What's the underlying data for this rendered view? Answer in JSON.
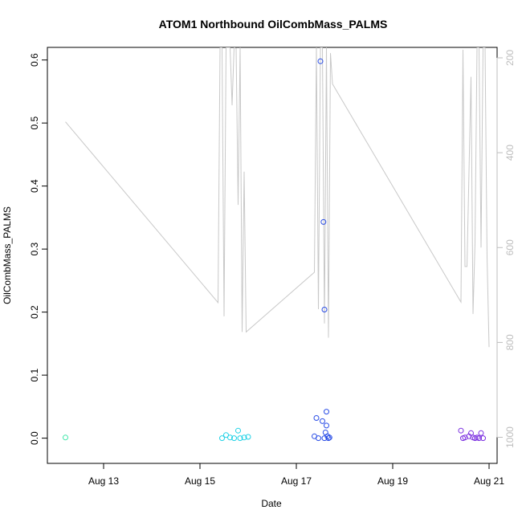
{
  "chart_data": {
    "type": "scatter",
    "title": "ATOM1 Northbound OilCombMass_PALMS",
    "xlabel": "Date",
    "ylabel": "OilCombMass_PALMS",
    "x_ticks": [
      "Aug 13",
      "Aug 15",
      "Aug 17",
      "Aug 19",
      "Aug 21"
    ],
    "y_ticks": [
      "0.0",
      "0.1",
      "0.2",
      "0.3",
      "0.4",
      "0.5",
      "0.6"
    ],
    "y_right_ticks": [
      "200",
      "400",
      "600",
      "800",
      "1000"
    ],
    "xlim": [
      "Aug 11 20:00",
      "Aug 21 04:00"
    ],
    "ylim": [
      -0.04,
      0.62
    ],
    "y_right_lim": [
      1055,
      178
    ],
    "y_right_inverted": true,
    "grid": false,
    "colors": {
      "line": "#c8c8c8",
      "right_axis": "#bdbdbd",
      "frame": "#000000"
    },
    "series": [
      {
        "color": "#3ee6a8",
        "points": [
          {
            "x": "Aug 12 05:00",
            "y": 0.001
          }
        ]
      },
      {
        "color": "#22d2e6",
        "points": [
          {
            "x": "Aug 15 11:00",
            "y": 0.0
          },
          {
            "x": "Aug 15 13:00",
            "y": 0.005
          },
          {
            "x": "Aug 15 15:00",
            "y": 0.001
          },
          {
            "x": "Aug 15 17:00",
            "y": 0.0
          },
          {
            "x": "Aug 15 19:00",
            "y": 0.012
          },
          {
            "x": "Aug 15 20:00",
            "y": 0.0
          },
          {
            "x": "Aug 15 22:00",
            "y": 0.001
          },
          {
            "x": "Aug 16 00:00",
            "y": 0.002
          }
        ]
      },
      {
        "color": "#2a4de6",
        "points": [
          {
            "x": "Aug 17 09:00",
            "y": 0.003
          },
          {
            "x": "Aug 17 10:00",
            "y": 0.032
          },
          {
            "x": "Aug 17 11:00",
            "y": 0.0
          },
          {
            "x": "Aug 17 12:00",
            "y": 0.598
          },
          {
            "x": "Aug 17 13:00",
            "y": 0.027
          },
          {
            "x": "Aug 17 13:30",
            "y": 0.343
          },
          {
            "x": "Aug 17 14:00",
            "y": 0.204
          },
          {
            "x": "Aug 17 14:00",
            "y": 0.0
          },
          {
            "x": "Aug 17 14:30",
            "y": 0.009
          },
          {
            "x": "Aug 17 15:00",
            "y": 0.042
          },
          {
            "x": "Aug 17 15:00",
            "y": 0.02
          },
          {
            "x": "Aug 17 15:30",
            "y": 0.003
          },
          {
            "x": "Aug 17 16:00",
            "y": 0.0
          },
          {
            "x": "Aug 17 16:30",
            "y": 0.001
          }
        ]
      },
      {
        "color": "#7a2ee0",
        "points": [
          {
            "x": "Aug 20 10:00",
            "y": 0.012
          },
          {
            "x": "Aug 20 11:00",
            "y": 0.0
          },
          {
            "x": "Aug 20 12:00",
            "y": 0.001
          },
          {
            "x": "Aug 20 14:00",
            "y": 0.003
          },
          {
            "x": "Aug 20 15:00",
            "y": 0.008
          },
          {
            "x": "Aug 20 16:00",
            "y": 0.001
          },
          {
            "x": "Aug 20 17:00",
            "y": 0.0
          },
          {
            "x": "Aug 20 18:00",
            "y": 0.001
          },
          {
            "x": "Aug 20 19:00",
            "y": 0.0
          },
          {
            "x": "Aug 20 20:00",
            "y": 0.008
          },
          {
            "x": "Aug 20 21:00",
            "y": 0.0
          }
        ]
      }
    ],
    "line_series": {
      "axis": "right",
      "color": "#c8c8c8",
      "points": [
        {
          "x": "Aug 12 05:00",
          "y": 335
        },
        {
          "x": "Aug 15 09:00",
          "y": 716
        },
        {
          "x": "Aug 15 10:00",
          "y": 178
        },
        {
          "x": "Aug 15 11:00",
          "y": 178
        },
        {
          "x": "Aug 15 12:00",
          "y": 745
        },
        {
          "x": "Aug 15 13:00",
          "y": 178
        },
        {
          "x": "Aug 15 15:00",
          "y": 178
        },
        {
          "x": "Aug 15 16:00",
          "y": 300
        },
        {
          "x": "Aug 15 17:00",
          "y": 178
        },
        {
          "x": "Aug 15 18:00",
          "y": 180
        },
        {
          "x": "Aug 15 19:00",
          "y": 510
        },
        {
          "x": "Aug 15 20:00",
          "y": 178
        },
        {
          "x": "Aug 15 21:00",
          "y": 778
        },
        {
          "x": "Aug 15 22:00",
          "y": 440
        },
        {
          "x": "Aug 15 23:00",
          "y": 778
        },
        {
          "x": "Aug 17 09:00",
          "y": 652
        },
        {
          "x": "Aug 17 10:00",
          "y": 178
        },
        {
          "x": "Aug 17 11:00",
          "y": 730
        },
        {
          "x": "Aug 17 12:00",
          "y": 178
        },
        {
          "x": "Aug 17 13:00",
          "y": 178
        },
        {
          "x": "Aug 17 14:00",
          "y": 760
        },
        {
          "x": "Aug 17 15:00",
          "y": 178
        },
        {
          "x": "Aug 17 16:00",
          "y": 790
        },
        {
          "x": "Aug 17 17:00",
          "y": 190
        },
        {
          "x": "Aug 17 18:00",
          "y": 255
        },
        {
          "x": "Aug 20 10:00",
          "y": 715
        },
        {
          "x": "Aug 20 11:00",
          "y": 183
        },
        {
          "x": "Aug 20 12:00",
          "y": 640
        },
        {
          "x": "Aug 20 13:00",
          "y": 640
        },
        {
          "x": "Aug 20 15:00",
          "y": 240
        },
        {
          "x": "Aug 20 16:00",
          "y": 740
        },
        {
          "x": "Aug 20 17:00",
          "y": 590
        },
        {
          "x": "Aug 20 18:00",
          "y": 178
        },
        {
          "x": "Aug 20 19:00",
          "y": 178
        },
        {
          "x": "Aug 20 20:00",
          "y": 600
        },
        {
          "x": "Aug 20 21:00",
          "y": 178
        },
        {
          "x": "Aug 20 22:00",
          "y": 178
        },
        {
          "x": "Aug 20 23:00",
          "y": 620
        },
        {
          "x": "Aug 21 00:00",
          "y": 810
        }
      ]
    }
  }
}
